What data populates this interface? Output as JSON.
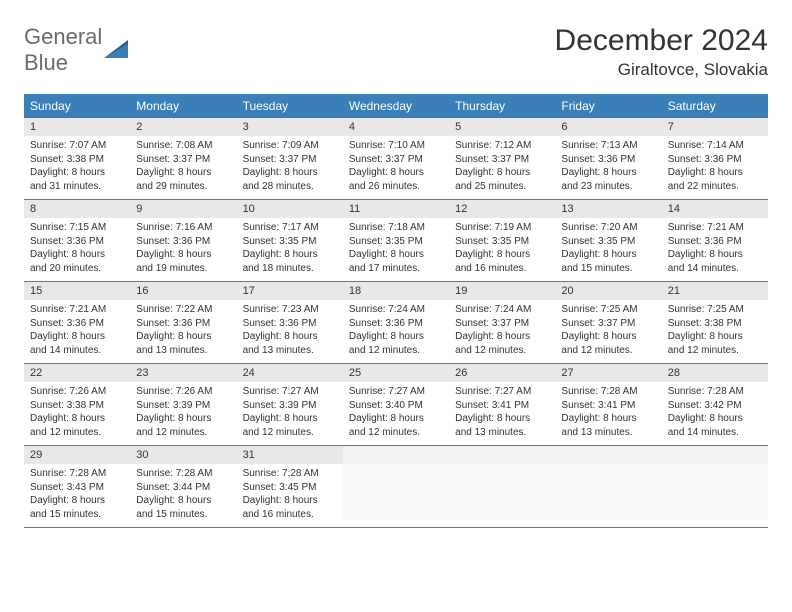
{
  "logo": {
    "text1": "General",
    "text2": "Blue"
  },
  "title": "December 2024",
  "location": "Giraltovce, Slovakia",
  "colors": {
    "header_bg": "#3a7fb8",
    "header_text": "#ffffff",
    "daynum_bg": "#e8e8e8",
    "border": "#3a7fb8",
    "body_text": "#333333",
    "logo_gray": "#6b6b6b",
    "logo_blue": "#3a7fb8"
  },
  "weekdays": [
    "Sunday",
    "Monday",
    "Tuesday",
    "Wednesday",
    "Thursday",
    "Friday",
    "Saturday"
  ],
  "days": [
    {
      "n": "1",
      "sunrise": "7:07 AM",
      "sunset": "3:38 PM",
      "daylight": "8 hours and 31 minutes."
    },
    {
      "n": "2",
      "sunrise": "7:08 AM",
      "sunset": "3:37 PM",
      "daylight": "8 hours and 29 minutes."
    },
    {
      "n": "3",
      "sunrise": "7:09 AM",
      "sunset": "3:37 PM",
      "daylight": "8 hours and 28 minutes."
    },
    {
      "n": "4",
      "sunrise": "7:10 AM",
      "sunset": "3:37 PM",
      "daylight": "8 hours and 26 minutes."
    },
    {
      "n": "5",
      "sunrise": "7:12 AM",
      "sunset": "3:37 PM",
      "daylight": "8 hours and 25 minutes."
    },
    {
      "n": "6",
      "sunrise": "7:13 AM",
      "sunset": "3:36 PM",
      "daylight": "8 hours and 23 minutes."
    },
    {
      "n": "7",
      "sunrise": "7:14 AM",
      "sunset": "3:36 PM",
      "daylight": "8 hours and 22 minutes."
    },
    {
      "n": "8",
      "sunrise": "7:15 AM",
      "sunset": "3:36 PM",
      "daylight": "8 hours and 20 minutes."
    },
    {
      "n": "9",
      "sunrise": "7:16 AM",
      "sunset": "3:36 PM",
      "daylight": "8 hours and 19 minutes."
    },
    {
      "n": "10",
      "sunrise": "7:17 AM",
      "sunset": "3:35 PM",
      "daylight": "8 hours and 18 minutes."
    },
    {
      "n": "11",
      "sunrise": "7:18 AM",
      "sunset": "3:35 PM",
      "daylight": "8 hours and 17 minutes."
    },
    {
      "n": "12",
      "sunrise": "7:19 AM",
      "sunset": "3:35 PM",
      "daylight": "8 hours and 16 minutes."
    },
    {
      "n": "13",
      "sunrise": "7:20 AM",
      "sunset": "3:35 PM",
      "daylight": "8 hours and 15 minutes."
    },
    {
      "n": "14",
      "sunrise": "7:21 AM",
      "sunset": "3:36 PM",
      "daylight": "8 hours and 14 minutes."
    },
    {
      "n": "15",
      "sunrise": "7:21 AM",
      "sunset": "3:36 PM",
      "daylight": "8 hours and 14 minutes."
    },
    {
      "n": "16",
      "sunrise": "7:22 AM",
      "sunset": "3:36 PM",
      "daylight": "8 hours and 13 minutes."
    },
    {
      "n": "17",
      "sunrise": "7:23 AM",
      "sunset": "3:36 PM",
      "daylight": "8 hours and 13 minutes."
    },
    {
      "n": "18",
      "sunrise": "7:24 AM",
      "sunset": "3:36 PM",
      "daylight": "8 hours and 12 minutes."
    },
    {
      "n": "19",
      "sunrise": "7:24 AM",
      "sunset": "3:37 PM",
      "daylight": "8 hours and 12 minutes."
    },
    {
      "n": "20",
      "sunrise": "7:25 AM",
      "sunset": "3:37 PM",
      "daylight": "8 hours and 12 minutes."
    },
    {
      "n": "21",
      "sunrise": "7:25 AM",
      "sunset": "3:38 PM",
      "daylight": "8 hours and 12 minutes."
    },
    {
      "n": "22",
      "sunrise": "7:26 AM",
      "sunset": "3:38 PM",
      "daylight": "8 hours and 12 minutes."
    },
    {
      "n": "23",
      "sunrise": "7:26 AM",
      "sunset": "3:39 PM",
      "daylight": "8 hours and 12 minutes."
    },
    {
      "n": "24",
      "sunrise": "7:27 AM",
      "sunset": "3:39 PM",
      "daylight": "8 hours and 12 minutes."
    },
    {
      "n": "25",
      "sunrise": "7:27 AM",
      "sunset": "3:40 PM",
      "daylight": "8 hours and 12 minutes."
    },
    {
      "n": "26",
      "sunrise": "7:27 AM",
      "sunset": "3:41 PM",
      "daylight": "8 hours and 13 minutes."
    },
    {
      "n": "27",
      "sunrise": "7:28 AM",
      "sunset": "3:41 PM",
      "daylight": "8 hours and 13 minutes."
    },
    {
      "n": "28",
      "sunrise": "7:28 AM",
      "sunset": "3:42 PM",
      "daylight": "8 hours and 14 minutes."
    },
    {
      "n": "29",
      "sunrise": "7:28 AM",
      "sunset": "3:43 PM",
      "daylight": "8 hours and 15 minutes."
    },
    {
      "n": "30",
      "sunrise": "7:28 AM",
      "sunset": "3:44 PM",
      "daylight": "8 hours and 15 minutes."
    },
    {
      "n": "31",
      "sunrise": "7:28 AM",
      "sunset": "3:45 PM",
      "daylight": "8 hours and 16 minutes."
    }
  ],
  "labels": {
    "sunrise_prefix": "Sunrise: ",
    "sunset_prefix": "Sunset: ",
    "daylight_prefix": "Daylight: "
  },
  "layout": {
    "start_weekday": 0,
    "total_cells": 35
  }
}
